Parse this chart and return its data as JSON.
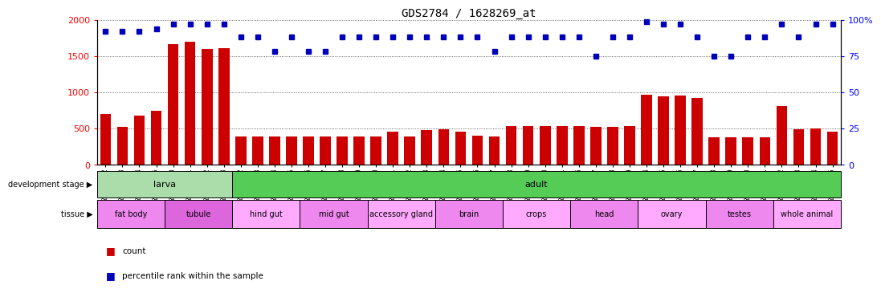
{
  "title": "GDS2784 / 1628269_at",
  "samples": [
    "GSM188092",
    "GSM188093",
    "GSM188094",
    "GSM188095",
    "GSM188100",
    "GSM188101",
    "GSM188102",
    "GSM188103",
    "GSM188072",
    "GSM188073",
    "GSM188074",
    "GSM188075",
    "GSM188076",
    "GSM188077",
    "GSM188078",
    "GSM188079",
    "GSM188080",
    "GSM188081",
    "GSM188082",
    "GSM188083",
    "GSM188084",
    "GSM188085",
    "GSM188086",
    "GSM188087",
    "GSM188088",
    "GSM188089",
    "GSM188090",
    "GSM188091",
    "GSM188096",
    "GSM188097",
    "GSM188098",
    "GSM188099",
    "GSM188104",
    "GSM188105",
    "GSM188106",
    "GSM188107",
    "GSM188108",
    "GSM188109",
    "GSM188110",
    "GSM188111",
    "GSM188112",
    "GSM188113",
    "GSM188114",
    "GSM188115"
  ],
  "counts": [
    700,
    520,
    680,
    750,
    1660,
    1700,
    1600,
    1610,
    390,
    390,
    390,
    390,
    390,
    390,
    390,
    390,
    390,
    460,
    390,
    480,
    490,
    460,
    400,
    390,
    530,
    530,
    530,
    530,
    530,
    520,
    520,
    540,
    970,
    950,
    960,
    920,
    380,
    380,
    380,
    380,
    810,
    490,
    500,
    460
  ],
  "percentiles": [
    92,
    92,
    92,
    94,
    97,
    97,
    97,
    97,
    88,
    88,
    78,
    88,
    78,
    78,
    88,
    88,
    88,
    88,
    88,
    88,
    88,
    88,
    88,
    78,
    88,
    88,
    88,
    88,
    88,
    75,
    88,
    88,
    99,
    97,
    97,
    88,
    75,
    75,
    88,
    88,
    97,
    88,
    97,
    97
  ],
  "dev_stage_groups": [
    {
      "label": "larva",
      "start": 0,
      "end": 8,
      "color": "#aaddaa"
    },
    {
      "label": "adult",
      "start": 8,
      "end": 44,
      "color": "#55cc55"
    }
  ],
  "tissue_groups": [
    {
      "label": "fat body",
      "start": 0,
      "end": 4,
      "color": "#ee88ee"
    },
    {
      "label": "tubule",
      "start": 4,
      "end": 8,
      "color": "#dd66dd"
    },
    {
      "label": "hind gut",
      "start": 8,
      "end": 12,
      "color": "#ffaaff"
    },
    {
      "label": "mid gut",
      "start": 12,
      "end": 16,
      "color": "#ee88ee"
    },
    {
      "label": "accessory gland",
      "start": 16,
      "end": 20,
      "color": "#ffaaff"
    },
    {
      "label": "brain",
      "start": 20,
      "end": 24,
      "color": "#ee88ee"
    },
    {
      "label": "crops",
      "start": 24,
      "end": 28,
      "color": "#ffaaff"
    },
    {
      "label": "head",
      "start": 28,
      "end": 32,
      "color": "#ee88ee"
    },
    {
      "label": "ovary",
      "start": 32,
      "end": 36,
      "color": "#ffaaff"
    },
    {
      "label": "testes",
      "start": 36,
      "end": 40,
      "color": "#ee88ee"
    },
    {
      "label": "whole animal",
      "start": 40,
      "end": 44,
      "color": "#ffaaff"
    }
  ],
  "bar_color": "#CC0000",
  "dot_color": "#0000BB",
  "left_ylim": [
    0,
    2000
  ],
  "left_yticks": [
    0,
    500,
    1000,
    1500,
    2000
  ],
  "right_ylim": [
    0,
    100
  ],
  "right_yticks": [
    0,
    25,
    50,
    75,
    100
  ],
  "grid_color": "#444444",
  "bar_width": 0.65,
  "dev_label": "development stage",
  "tissue_label": "tissue",
  "legend_count": "count",
  "legend_pct": "percentile rank within the sample"
}
